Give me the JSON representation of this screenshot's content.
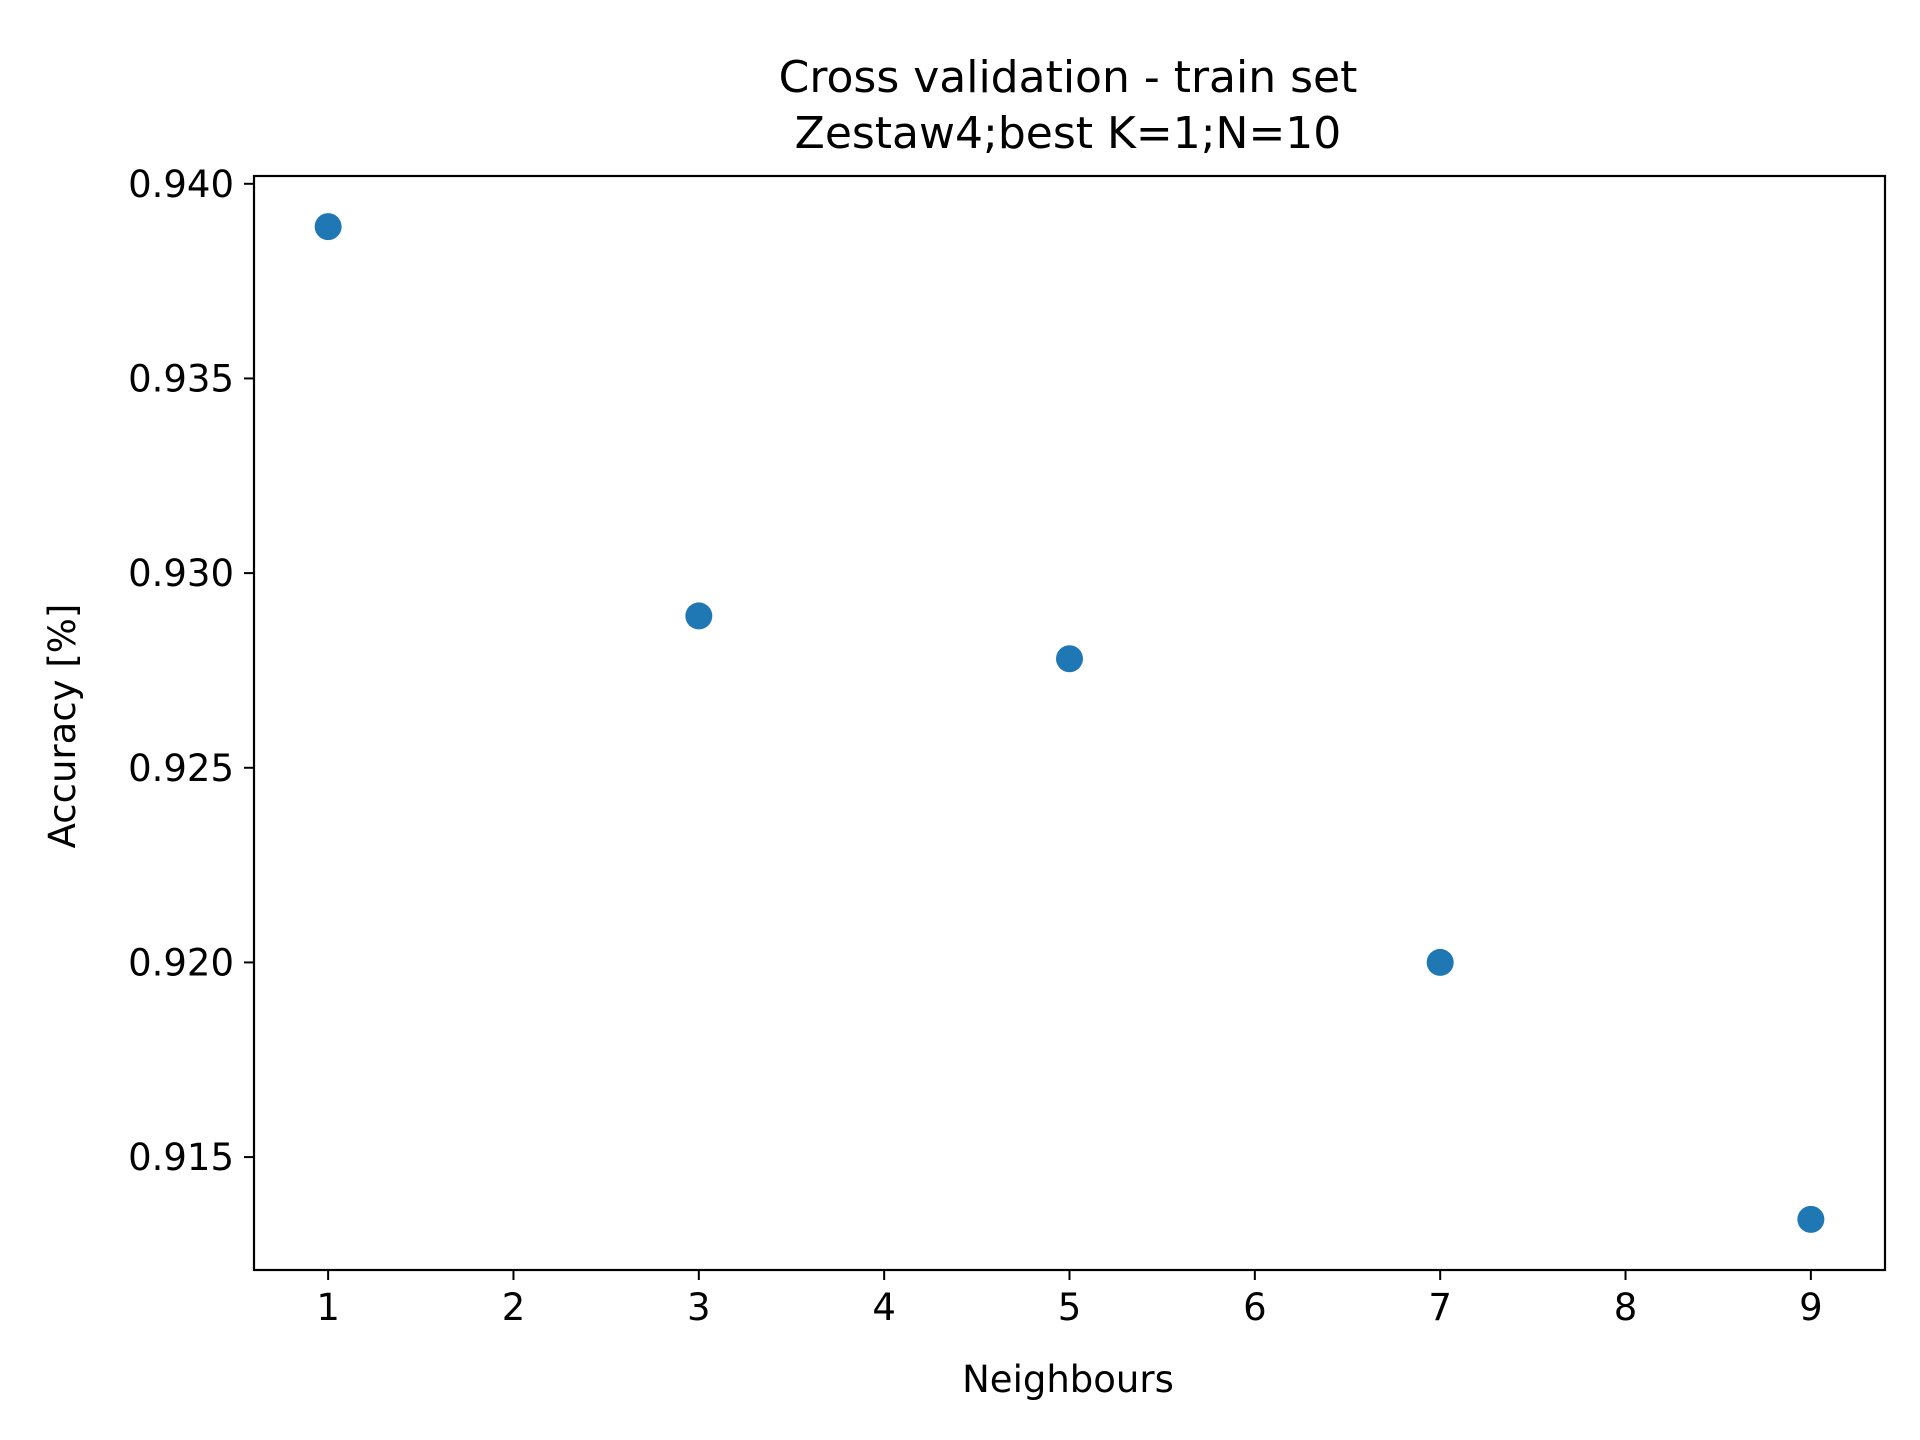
{
  "chart_data": {
    "type": "scatter",
    "title": "Cross validation - train set",
    "subtitle": "Zestaw4;best K=1;N=10",
    "xlabel": "Neighbours",
    "ylabel": "Accuracy [%]",
    "xlim": [
      0.6,
      9.4
    ],
    "ylim": [
      0.9121,
      0.9402
    ],
    "xticks": [
      1,
      2,
      3,
      4,
      5,
      6,
      7,
      8,
      9
    ],
    "xtick_labels": [
      "1",
      "2",
      "3",
      "4",
      "5",
      "6",
      "7",
      "8",
      "9"
    ],
    "yticks": [
      0.915,
      0.92,
      0.925,
      0.93,
      0.935,
      0.94
    ],
    "ytick_labels": [
      "0.915",
      "0.920",
      "0.925",
      "0.930",
      "0.935",
      "0.940"
    ],
    "grid": false,
    "color": "#1f77b4",
    "series": [
      {
        "x": [
          1,
          3,
          5,
          7,
          9
        ],
        "y": [
          0.9389,
          0.9289,
          0.9278,
          0.92,
          0.9134
        ]
      }
    ]
  }
}
